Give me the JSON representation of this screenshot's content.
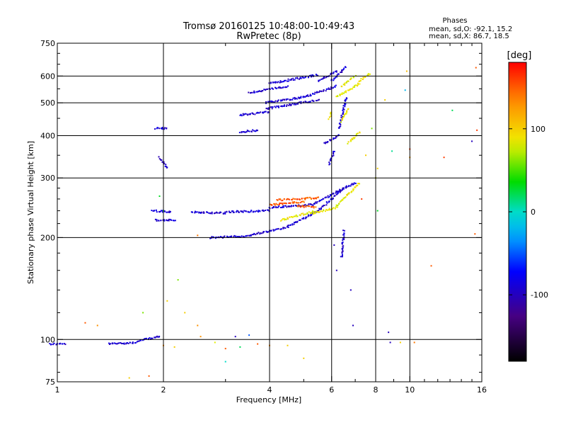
{
  "chart_data": {
    "type": "scatter",
    "title": "Tromsø 20160125 10:48:00-10:49:43",
    "subtitle": "RwPretec (8p)",
    "xlabel": "Frequency [MHz]",
    "ylabel": "Stationary phase Virtual Height [km]",
    "x_scale": "log",
    "y_scale": "log",
    "xlim": [
      1,
      16
    ],
    "ylim": [
      75,
      750
    ],
    "x_ticks": [
      {
        "v": 1,
        "label": "1"
      },
      {
        "v": 2,
        "label": "2"
      },
      {
        "v": 4,
        "label": "4"
      },
      {
        "v": 6,
        "label": "6"
      },
      {
        "v": 8,
        "label": "8"
      },
      {
        "v": 10,
        "label": "10"
      },
      {
        "v": 16,
        "label": "16"
      }
    ],
    "y_ticks": [
      {
        "v": 75,
        "label": "75"
      },
      {
        "v": 100,
        "label": "100"
      },
      {
        "v": 200,
        "label": "200"
      },
      {
        "v": 300,
        "label": "300"
      },
      {
        "v": 400,
        "label": "400"
      },
      {
        "v": 500,
        "label": "500"
      },
      {
        "v": 600,
        "label": "600"
      },
      {
        "v": 750,
        "label": "750"
      }
    ],
    "x_grid": [
      2,
      4,
      6,
      8,
      10
    ],
    "y_grid": [
      100,
      200,
      300,
      400,
      500,
      600
    ],
    "legend": {
      "title": "Phases",
      "lines": [
        "mean, sd,O: -92.1, 15.2",
        "mean, sd,X: 86.7, 18.5"
      ],
      "placement": "top-right"
    },
    "colorbar": {
      "label": "[deg]",
      "range": [
        -180,
        180
      ],
      "ticks": [
        {
          "v": 100,
          "label": "100"
        },
        {
          "v": 0,
          "label": "0"
        },
        {
          "v": -100,
          "label": "-100"
        }
      ],
      "placement": "right"
    },
    "series": [
      {
        "phase": -92,
        "segments": [
          [
            0.95,
            97,
            1.05,
            97
          ],
          [
            1.4,
            97,
            1.68,
            98
          ],
          [
            1.7,
            99,
            1.95,
            102
          ],
          [
            1.85,
            240,
            2.1,
            238
          ],
          [
            1.9,
            225,
            2.15,
            225
          ],
          [
            1.9,
            420,
            2.05,
            420
          ],
          [
            1.95,
            345,
            2.05,
            320
          ],
          [
            2.4,
            238,
            3.0,
            236
          ],
          [
            3.0,
            238,
            4.0,
            240
          ],
          [
            4.0,
            245,
            5.3,
            250
          ],
          [
            5.3,
            250,
            6.5,
            280
          ],
          [
            2.7,
            200,
            3.5,
            202
          ],
          [
            3.5,
            203,
            4.5,
            215
          ],
          [
            4.5,
            215,
            5.5,
            240
          ],
          [
            5.5,
            240,
            6.5,
            280
          ],
          [
            6.5,
            280,
            7.0,
            290
          ],
          [
            3.3,
            410,
            3.7,
            415
          ],
          [
            3.3,
            460,
            4.0,
            470
          ],
          [
            3.9,
            480,
            5.5,
            510
          ],
          [
            3.9,
            500,
            5.0,
            520
          ],
          [
            5.0,
            520,
            6.2,
            560
          ],
          [
            3.5,
            535,
            4.5,
            560
          ],
          [
            4.0,
            570,
            5.5,
            605
          ],
          [
            5.5,
            580,
            6.2,
            620
          ],
          [
            6.0,
            580,
            6.6,
            640
          ],
          [
            6.3,
            420,
            6.6,
            520
          ],
          [
            5.7,
            380,
            6.3,
            400
          ],
          [
            6.4,
            175,
            6.5,
            210
          ],
          [
            5.9,
            330,
            6.1,
            360
          ]
        ]
      },
      {
        "phase": 86,
        "segments": [
          [
            4.3,
            225,
            5.4,
            240
          ],
          [
            5.2,
            235,
            6.2,
            245
          ],
          [
            6.2,
            248,
            7.2,
            290
          ],
          [
            6.2,
            520,
            7.2,
            570
          ],
          [
            6.4,
            560,
            7.0,
            600
          ],
          [
            6.7,
            380,
            7.2,
            410
          ],
          [
            7.2,
            580,
            7.7,
            610
          ],
          [
            6.4,
            440,
            6.7,
            480
          ],
          [
            5.9,
            450,
            6.0,
            470
          ]
        ]
      },
      {
        "phase": 150,
        "segments": [
          [
            4.0,
            250,
            5.0,
            255
          ],
          [
            4.2,
            258,
            5.5,
            262
          ],
          [
            4.8,
            248,
            5.4,
            246
          ]
        ]
      }
    ],
    "scatter_points": [
      [
        1.2,
        112,
        150
      ],
      [
        1.3,
        110,
        130
      ],
      [
        1.75,
        120,
        60
      ],
      [
        1.82,
        78,
        150
      ],
      [
        1.6,
        77,
        100
      ],
      [
        2.3,
        120,
        100
      ],
      [
        2.5,
        110,
        130
      ],
      [
        2.55,
        102,
        130
      ],
      [
        2.8,
        98,
        80
      ],
      [
        3.0,
        94,
        150
      ],
      [
        3.2,
        102,
        -100
      ],
      [
        3.5,
        103,
        -50
      ],
      [
        3.7,
        97,
        150
      ],
      [
        3.3,
        95,
        20
      ],
      [
        3.0,
        86,
        0
      ],
      [
        2.5,
        203,
        140
      ],
      [
        8.7,
        105,
        -100
      ],
      [
        8.8,
        98,
        -100
      ],
      [
        9.4,
        98,
        100
      ],
      [
        10.3,
        98,
        140
      ],
      [
        10.0,
        365,
        160
      ],
      [
        10.0,
        345,
        120
      ],
      [
        11.5,
        165,
        150
      ],
      [
        12.5,
        345,
        160
      ],
      [
        13.2,
        475,
        20
      ],
      [
        15.0,
        385,
        -100
      ],
      [
        15.5,
        415,
        160
      ],
      [
        15.3,
        205,
        150
      ],
      [
        15.4,
        635,
        150
      ],
      [
        9.7,
        545,
        -20
      ],
      [
        8.1,
        320,
        100
      ],
      [
        8.1,
        240,
        30
      ],
      [
        8.0,
        300,
        80
      ],
      [
        8.9,
        360,
        10
      ],
      [
        7.8,
        420,
        60
      ],
      [
        7.5,
        350,
        100
      ],
      [
        2.15,
        95,
        100
      ],
      [
        2.0,
        96,
        130
      ],
      [
        2.2,
        150,
        60
      ],
      [
        2.05,
        130,
        100
      ],
      [
        6.8,
        140,
        -100
      ],
      [
        6.9,
        110,
        -100
      ],
      [
        1.95,
        265,
        30
      ],
      [
        2.0,
        240,
        20
      ],
      [
        5.0,
        88,
        100
      ],
      [
        4.5,
        96,
        100
      ],
      [
        4.0,
        96,
        130
      ],
      [
        7.3,
        260,
        160
      ],
      [
        6.1,
        190,
        -100
      ],
      [
        6.2,
        160,
        -100
      ],
      [
        8.5,
        510,
        100
      ],
      [
        9.8,
        620,
        110
      ]
    ]
  }
}
